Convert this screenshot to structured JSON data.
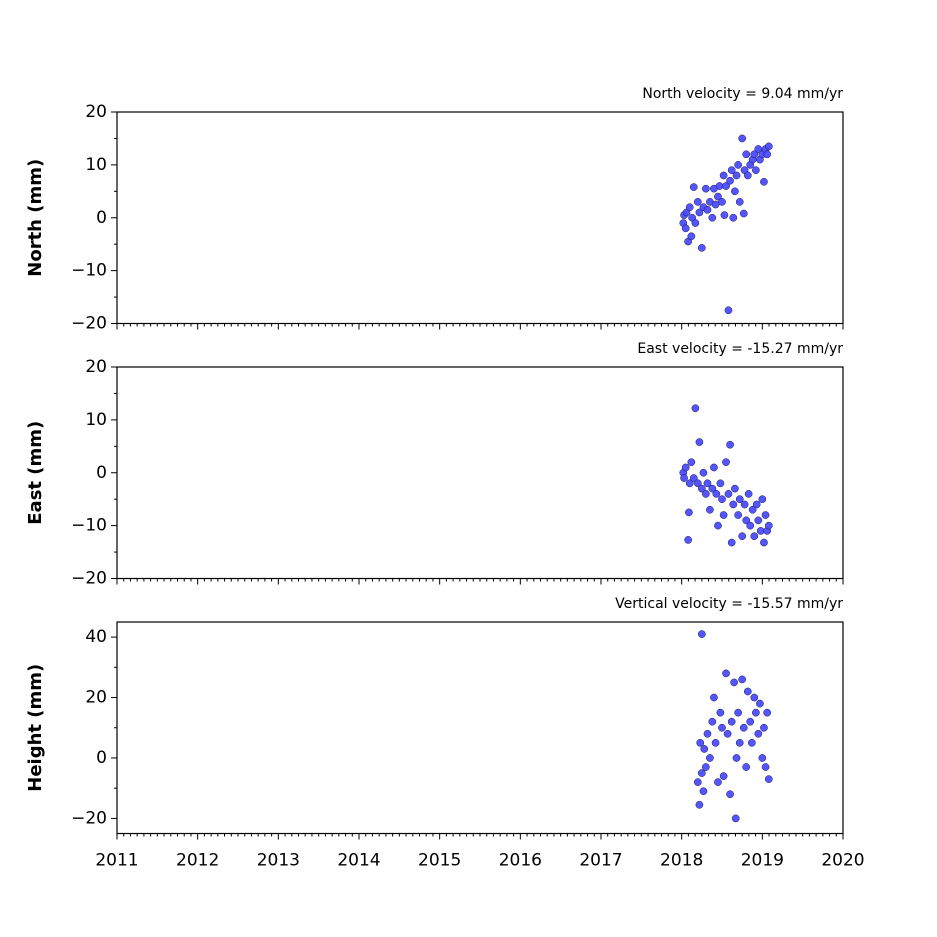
{
  "chart_data": [
    {
      "type": "scatter",
      "title": "North velocity = 9.04 mm/yr",
      "ylabel": "North (mm)",
      "color": "#4c4cff",
      "edgecolor": "#1a1a4d",
      "xlim": [
        2011,
        2020
      ],
      "xticks": [
        2011,
        2012,
        2013,
        2014,
        2015,
        2016,
        2017,
        2018,
        2019,
        2020
      ],
      "ylim": [
        -20,
        20
      ],
      "yticks": [
        {
          "value": -20,
          "label": "−20"
        },
        {
          "value": -10,
          "label": "−10"
        },
        0,
        10,
        20
      ],
      "x": [
        2018.02,
        2018.03,
        2018.05,
        2018.06,
        2018.08,
        2018.1,
        2018.12,
        2018.13,
        2018.15,
        2018.17,
        2018.2,
        2018.22,
        2018.25,
        2018.27,
        2018.3,
        2018.32,
        2018.35,
        2018.38,
        2018.4,
        2018.42,
        2018.45,
        2018.47,
        2018.5,
        2018.52,
        2018.53,
        2018.55,
        2018.58,
        2018.6,
        2018.62,
        2018.64,
        2018.66,
        2018.68,
        2018.7,
        2018.72,
        2018.75,
        2018.77,
        2018.78,
        2018.8,
        2018.82,
        2018.85,
        2018.88,
        2018.9,
        2018.92,
        2018.95,
        2018.97,
        2019.0,
        2019.02,
        2019.04,
        2019.06,
        2019.08
      ],
      "values": [
        -1,
        0.5,
        -2,
        1,
        -4.5,
        2,
        -3.5,
        0,
        5.8,
        -1,
        3,
        1,
        -5.7,
        2,
        5.5,
        1.5,
        3,
        0,
        5.5,
        2.5,
        4,
        6,
        3,
        8,
        0.5,
        6,
        -17.5,
        7,
        9,
        0,
        5,
        8,
        10,
        3,
        15,
        0.8,
        9,
        12,
        8,
        10,
        11,
        12,
        9,
        13,
        11,
        12,
        6.8,
        13,
        12,
        13.5
      ]
    },
    {
      "type": "scatter",
      "title": "East velocity = -15.27 mm/yr",
      "ylabel": "East (mm)",
      "color": "#4c4cff",
      "edgecolor": "#1a1a4d",
      "xlim": [
        2011,
        2020
      ],
      "xticks": [
        2011,
        2012,
        2013,
        2014,
        2015,
        2016,
        2017,
        2018,
        2019,
        2020
      ],
      "ylim": [
        -20,
        20
      ],
      "yticks": [
        {
          "value": -20,
          "label": "−20"
        },
        {
          "value": -10,
          "label": "−10"
        },
        0,
        10,
        20
      ],
      "x": [
        2018.02,
        2018.03,
        2018.05,
        2018.08,
        2018.09,
        2018.1,
        2018.12,
        2018.15,
        2018.17,
        2018.2,
        2018.22,
        2018.25,
        2018.27,
        2018.3,
        2018.32,
        2018.35,
        2018.38,
        2018.4,
        2018.43,
        2018.45,
        2018.48,
        2018.5,
        2018.52,
        2018.55,
        2018.58,
        2018.6,
        2018.62,
        2018.64,
        2018.66,
        2018.7,
        2018.72,
        2018.75,
        2018.78,
        2018.8,
        2018.83,
        2018.85,
        2018.88,
        2018.9,
        2018.93,
        2018.95,
        2018.98,
        2019.0,
        2019.02,
        2019.04,
        2019.06,
        2019.08
      ],
      "values": [
        0,
        -1,
        1,
        -12.7,
        -7.5,
        -2,
        2,
        -1,
        12.2,
        -2,
        5.8,
        -3,
        0,
        -4,
        -2,
        -7,
        -3,
        1,
        -4,
        -10,
        -2,
        -5,
        -8,
        2,
        -4,
        5.3,
        -13.2,
        -6,
        -3,
        -8,
        -5,
        -12,
        -6,
        -9,
        -4,
        -10,
        -7,
        -12,
        -6,
        -9,
        -11,
        -5,
        -13.2,
        -8,
        -11,
        -10
      ]
    },
    {
      "type": "scatter",
      "title": "Vertical velocity = -15.57 mm/yr",
      "ylabel": "Height (mm)",
      "color": "#4c4cff",
      "edgecolor": "#1a1a4d",
      "xlim": [
        2011,
        2020
      ],
      "xticks": [
        2011,
        2012,
        2013,
        2014,
        2015,
        2016,
        2017,
        2018,
        2019,
        2020
      ],
      "ylim": [
        -25,
        45
      ],
      "yticks": [
        {
          "value": -20,
          "label": "−20"
        },
        0,
        20,
        40
      ],
      "x": [
        2018.2,
        2018.22,
        2018.23,
        2018.25,
        2018.25,
        2018.27,
        2018.28,
        2018.3,
        2018.32,
        2018.35,
        2018.38,
        2018.4,
        2018.42,
        2018.45,
        2018.48,
        2018.5,
        2018.52,
        2018.55,
        2018.57,
        2018.6,
        2018.62,
        2018.65,
        2018.67,
        2018.68,
        2018.7,
        2018.72,
        2018.75,
        2018.77,
        2018.8,
        2018.82,
        2018.85,
        2018.87,
        2018.9,
        2018.92,
        2018.95,
        2018.97,
        2019.0,
        2019.02,
        2019.04,
        2019.06,
        2019.08
      ],
      "values": [
        -8,
        -15.5,
        5,
        -5,
        41,
        -11,
        3,
        -3,
        8,
        0,
        12,
        20,
        5,
        -8,
        15,
        10,
        -6,
        28,
        8,
        -12,
        12,
        25,
        -20,
        0,
        15,
        5,
        26,
        10,
        -3,
        22,
        12,
        5,
        20,
        15,
        8,
        18,
        0,
        10,
        -3,
        15,
        -7
      ]
    }
  ]
}
